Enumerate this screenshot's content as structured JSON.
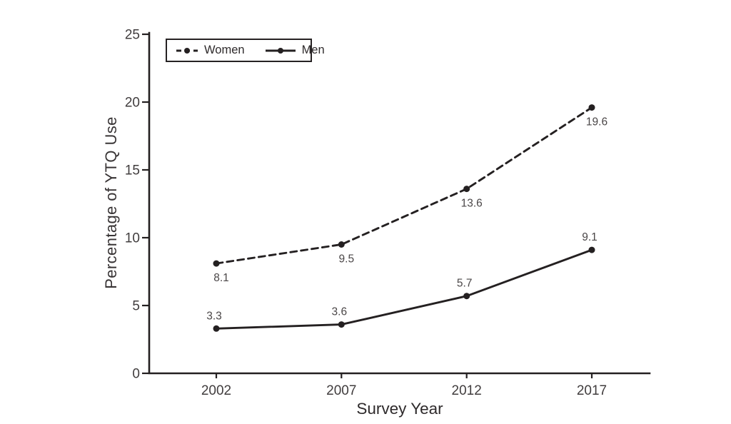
{
  "chart_data": {
    "type": "line",
    "title": "",
    "xlabel": "Survey Year",
    "ylabel": "Percentage of YTQ Use",
    "x": [
      "2002",
      "2007",
      "2012",
      "2017"
    ],
    "yticks": [
      0,
      5,
      10,
      15,
      20,
      25
    ],
    "ylim": [
      0,
      25
    ],
    "grid": false,
    "legend_position": "top-left-inside-box",
    "series": [
      {
        "name": "Women",
        "line_style": "dashed",
        "marker": "filled-circle",
        "values": [
          8.1,
          9.5,
          13.6,
          19.6
        ],
        "point_labels": [
          "8.1",
          "9.5",
          "13.6",
          "19.6"
        ],
        "label_position": "below"
      },
      {
        "name": "Men",
        "line_style": "solid",
        "marker": "filled-circle",
        "values": [
          3.3,
          3.6,
          5.7,
          9.1
        ],
        "point_labels": [
          "3.3",
          "3.6",
          "5.7",
          "9.1"
        ],
        "label_position": "above"
      }
    ],
    "colors": {
      "line": "#242021",
      "axis": "#242021",
      "tick_text": "#413d3e",
      "point_label_text": "#4a4647",
      "background": "#ffffff"
    }
  }
}
